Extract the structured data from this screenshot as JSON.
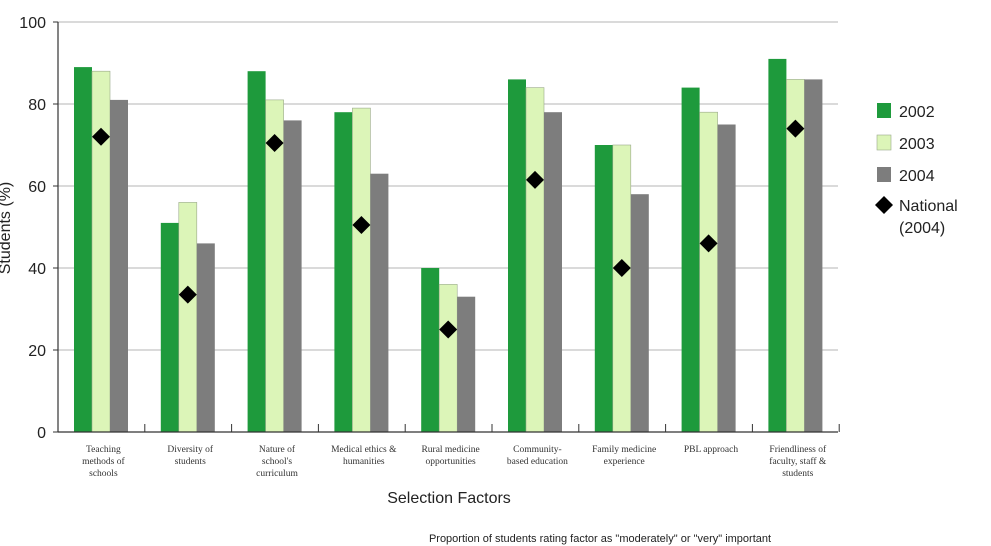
{
  "chart_data": {
    "type": "bar",
    "title": "",
    "xlabel": "Selection Factors",
    "ylabel": "Students (%)",
    "ylim": [
      0,
      100
    ],
    "yticks": [
      "0",
      "20",
      "40",
      "60",
      "80",
      "100"
    ],
    "grid": true,
    "legend_position": "right",
    "categories": [
      [
        "Teaching",
        "methods of",
        "schools"
      ],
      [
        "Diversity of",
        "students"
      ],
      [
        "Nature of",
        "school's",
        "curriculum"
      ],
      [
        "Medical ethics &",
        "humanities"
      ],
      [
        "Rural medicine",
        "opportunities"
      ],
      [
        "Community-",
        "based education"
      ],
      [
        "Family medicine",
        "experience"
      ],
      [
        "PBL approach"
      ],
      [
        "Friendliness of",
        "faculty, staff &",
        "students"
      ]
    ],
    "series": [
      {
        "name": "2002",
        "color": "#1e9a3c",
        "values": [
          89,
          51,
          88,
          78,
          40,
          86,
          70,
          84,
          91
        ]
      },
      {
        "name": "2003",
        "color": "#dcf5b8",
        "values": [
          88,
          56,
          81,
          79,
          36,
          84,
          70,
          78,
          86
        ]
      },
      {
        "name": "2004",
        "color": "#7d7d7d",
        "values": [
          81,
          46,
          76,
          63,
          33,
          78,
          58,
          75,
          86
        ]
      }
    ],
    "markers": {
      "name_lines": [
        "National",
        "(2004)"
      ],
      "shape": "diamond",
      "color": "#000000",
      "values": [
        72,
        33.5,
        70.5,
        50.5,
        25,
        61.5,
        40,
        46,
        74
      ]
    },
    "note": "Proportion of students rating factor as \"moderately\" or \"very\" important"
  }
}
